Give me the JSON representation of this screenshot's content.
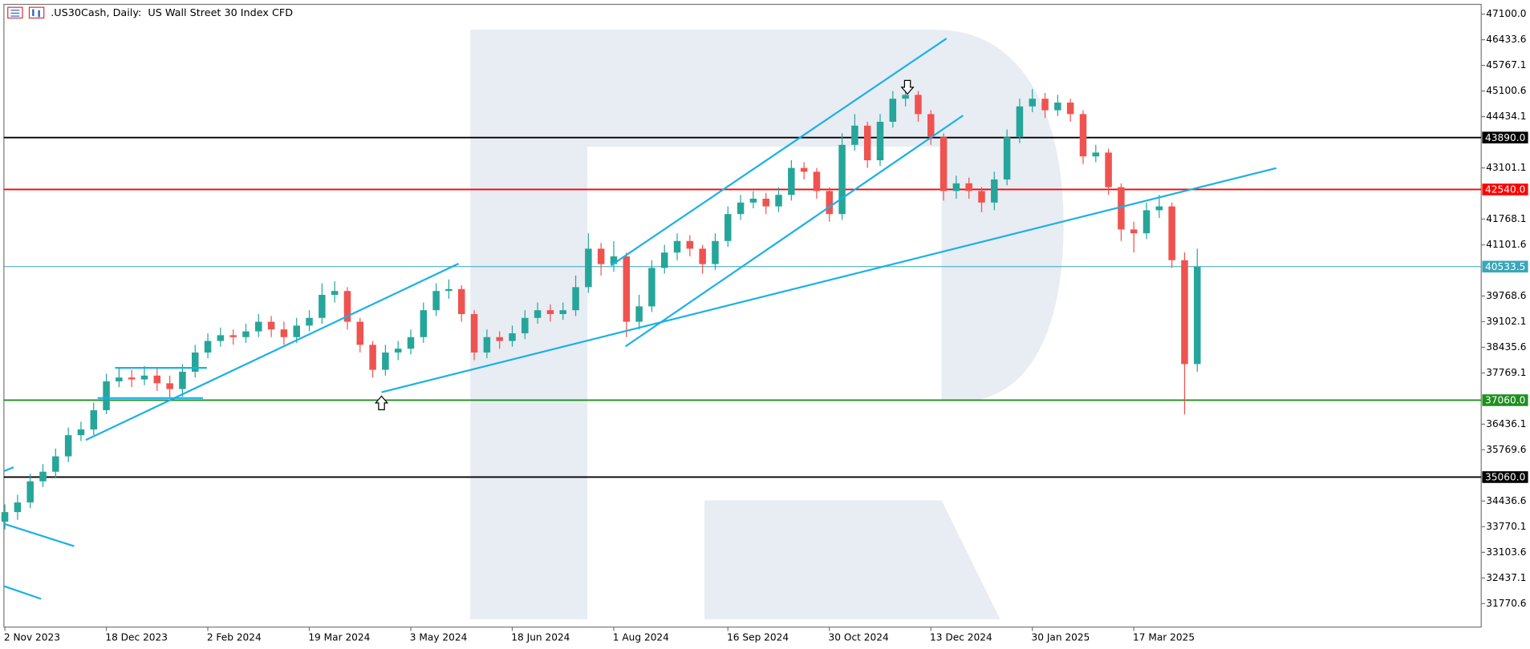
{
  "chart_data": {
    "type": "candlestick",
    "title": ".US30Cash, Daily:  US Wall Street 30 Index CFD",
    "categories": [
      "2 Nov 2023",
      null,
      null,
      null,
      null,
      null,
      null,
      null,
      "18 Dec 2023",
      null,
      null,
      null,
      null,
      null,
      null,
      null,
      "2 Feb 2024",
      null,
      null,
      null,
      null,
      null,
      null,
      null,
      "19 Mar 2024",
      null,
      null,
      null,
      null,
      null,
      null,
      null,
      "3 May 2024",
      null,
      null,
      null,
      null,
      null,
      null,
      null,
      "18 Jun 2024",
      null,
      null,
      null,
      null,
      null,
      null,
      null,
      "1 Aug 2024",
      null,
      null,
      null,
      null,
      null,
      null,
      null,
      null,
      "16 Sep 2024",
      null,
      null,
      null,
      null,
      null,
      null,
      null,
      "30 Oct 2024",
      null,
      null,
      null,
      null,
      null,
      null,
      null,
      "13 Dec 2024",
      null,
      null,
      null,
      null,
      null,
      null,
      null,
      "30 Jan 2025",
      null,
      null,
      null,
      null,
      null,
      null,
      null,
      "17 Mar 2025",
      null,
      null,
      null,
      null,
      null
    ],
    "open": [
      33900,
      34150,
      34400,
      34950,
      35200,
      35600,
      36150,
      36300,
      36800,
      37550,
      37650,
      37600,
      37700,
      37500,
      37350,
      37800,
      38300,
      38600,
      38750,
      38700,
      38850,
      39100,
      38900,
      38700,
      39000,
      39200,
      39800,
      39900,
      39100,
      38500,
      37850,
      38300,
      38400,
      38700,
      39400,
      39900,
      39950,
      39300,
      38300,
      38700,
      38600,
      38800,
      39200,
      39400,
      39300,
      39400,
      40000,
      41000,
      40600,
      40800,
      39100,
      39500,
      40500,
      40900,
      41200,
      41000,
      40600,
      41200,
      41900,
      42200,
      42300,
      42100,
      42400,
      43100,
      43000,
      42500,
      41900,
      43700,
      44200,
      43300,
      44300,
      44900,
      45000,
      44500,
      43900,
      42500,
      42700,
      42500,
      42200,
      42800,
      43900,
      44700,
      44900,
      44600,
      44800,
      44500,
      43400,
      43500,
      42600,
      41500,
      41400,
      42000,
      42100,
      40700,
      38000
    ],
    "high": [
      34350,
      34600,
      35150,
      35400,
      35800,
      36350,
      36500,
      37000,
      37750,
      37900,
      37850,
      37950,
      37900,
      37700,
      38000,
      38500,
      38800,
      38950,
      38900,
      39050,
      39300,
      39250,
      39100,
      39200,
      39400,
      40100,
      40150,
      40000,
      39200,
      38600,
      38500,
      38600,
      38900,
      39600,
      40100,
      40200,
      40050,
      39400,
      38900,
      38850,
      39000,
      39400,
      39600,
      39550,
      39600,
      40300,
      41400,
      41150,
      41200,
      40900,
      39800,
      40700,
      41100,
      41400,
      41350,
      41100,
      41400,
      42100,
      42400,
      42500,
      42450,
      42600,
      43300,
      43250,
      43100,
      42600,
      44000,
      44500,
      44300,
      44500,
      45100,
      45200,
      45100,
      44600,
      44000,
      42900,
      42850,
      42600,
      43000,
      44100,
      44900,
      45150,
      45050,
      45000,
      44900,
      44600,
      43700,
      43600,
      42700,
      41700,
      42200,
      42400,
      42200,
      40900,
      41000
    ],
    "low": [
      33700,
      33950,
      34250,
      34800,
      35050,
      35450,
      36000,
      36150,
      36700,
      37400,
      37400,
      37450,
      37300,
      37100,
      37150,
      37650,
      38150,
      38450,
      38500,
      38550,
      38700,
      38700,
      38500,
      38550,
      38850,
      39050,
      39600,
      38900,
      38300,
      37650,
      37700,
      38100,
      38250,
      38550,
      39250,
      39700,
      39100,
      38100,
      38150,
      38400,
      38450,
      38650,
      39050,
      39100,
      39150,
      39250,
      39850,
      40300,
      40400,
      38700,
      38900,
      39350,
      40350,
      40700,
      40800,
      40350,
      40450,
      41050,
      41750,
      42050,
      41900,
      41950,
      42250,
      42800,
      42300,
      41700,
      41750,
      43550,
      43100,
      43150,
      44150,
      44700,
      44300,
      43700,
      42250,
      42300,
      42300,
      41950,
      42000,
      42650,
      43750,
      44550,
      44400,
      44450,
      44300,
      43200,
      43250,
      42400,
      41200,
      40900,
      41250,
      41800,
      40500,
      36690,
      37800
    ],
    "close": [
      34150,
      34400,
      34950,
      35200,
      35600,
      36150,
      36300,
      36800,
      37550,
      37650,
      37600,
      37700,
      37500,
      37350,
      37800,
      38300,
      38600,
      38750,
      38700,
      38850,
      39100,
      38900,
      38700,
      39000,
      39200,
      39800,
      39900,
      39100,
      38500,
      37850,
      38300,
      38400,
      38700,
      39400,
      39900,
      39950,
      39300,
      38300,
      38700,
      38600,
      38800,
      39200,
      39400,
      39300,
      39400,
      40000,
      41000,
      40600,
      40800,
      39100,
      39500,
      40500,
      40900,
      41200,
      41000,
      40600,
      41200,
      41900,
      42200,
      42300,
      42100,
      42400,
      43100,
      43000,
      42500,
      41900,
      43700,
      44200,
      43300,
      44300,
      44900,
      45000,
      44500,
      43900,
      42500,
      42700,
      42500,
      42200,
      42800,
      43900,
      44700,
      44900,
      44600,
      44800,
      44500,
      43400,
      43500,
      42600,
      41500,
      41400,
      42000,
      42100,
      40700,
      38000,
      40530
    ],
    "up_color": "#26a69a",
    "down_color": "#ef5350",
    "ylim": [
      31160,
      47353
    ],
    "yticks": [
      {
        "value": 47100,
        "label": "47100.0"
      },
      {
        "value": 46433.6,
        "label": "46433.6"
      },
      {
        "value": 45767.1,
        "label": "45767.1"
      },
      {
        "value": 45100.6,
        "label": "45100.6"
      },
      {
        "value": 44434.1,
        "label": "44434.1"
      },
      {
        "value": 43101.1,
        "label": "43101.1"
      },
      {
        "value": 41768.1,
        "label": "41768.1"
      },
      {
        "value": 41101.6,
        "label": "41101.6"
      },
      {
        "value": 39768.6,
        "label": "39768.6"
      },
      {
        "value": 39102.1,
        "label": "39102.1"
      },
      {
        "value": 38435.6,
        "label": "38435.6"
      },
      {
        "value": 37769.1,
        "label": "37769.1"
      },
      {
        "value": 36436.1,
        "label": "36436.1"
      },
      {
        "value": 35769.6,
        "label": "35769.6"
      },
      {
        "value": 34436.6,
        "label": "34436.6"
      },
      {
        "value": 33770.1,
        "label": "33770.1"
      },
      {
        "value": 33103.6,
        "label": "33103.6"
      },
      {
        "value": 32437.1,
        "label": "32437.1"
      },
      {
        "value": 31770.6,
        "label": "31770.6"
      }
    ],
    "levels": [
      {
        "value": 43890,
        "label": "43890.0",
        "color": "#000000"
      },
      {
        "value": 42540,
        "label": "42540.0",
        "color": "#ff0000"
      },
      {
        "value": 40533.5,
        "label": "40533.5",
        "color": "#3aa6b9"
      },
      {
        "value": 37060,
        "label": "37060.0",
        "color": "#1f8f1f"
      },
      {
        "value": 35060,
        "label": "35060.0",
        "color": "#000000"
      }
    ]
  }
}
